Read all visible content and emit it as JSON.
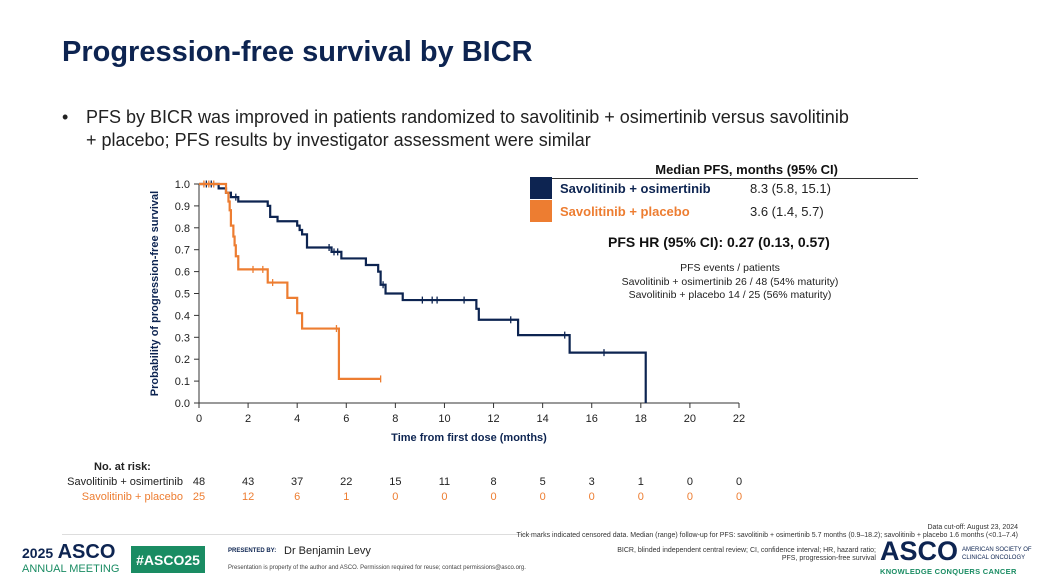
{
  "title": "Progression-free survival by BICR",
  "bullet": "PFS by BICR was improved in patients randomized to savolitinib + osimertinib versus savolitinib + placebo; PFS results by investigator assessment were similar",
  "bullet_marker": "•",
  "median": {
    "title": "Median PFS, months (95% CI)",
    "rows": [
      {
        "label": "Savolitinib + osimertinib",
        "value": "8.3 (5.8, 15.1)",
        "color": "#0d2451"
      },
      {
        "label": "Savolitinib + placebo",
        "value": "3.6 (1.4, 5.7)",
        "color": "#ed7d31"
      }
    ]
  },
  "hr": "PFS HR (95% CI): 0.27 (0.13, 0.57)",
  "events": {
    "title": "PFS events / patients",
    "lines": [
      "Savolitinib + osimertinib 26 / 48 (54% maturity)",
      "Savolitinib + placebo 14 / 25 (56% maturity)"
    ]
  },
  "chart_data": {
    "type": "line",
    "subtype": "kaplan-meier",
    "xlabel": "Time from first dose (months)",
    "ylabel": "Probability of progression-free survival",
    "xlim": [
      0,
      22
    ],
    "ylim": [
      0,
      1
    ],
    "xticks": [
      "0",
      "2",
      "4",
      "6",
      "8",
      "10",
      "12",
      "14",
      "16",
      "18",
      "20",
      "22"
    ],
    "yticks": [
      "0.0",
      "0.1",
      "0.2",
      "0.3",
      "0.4",
      "0.5",
      "0.6",
      "0.7",
      "0.8",
      "0.9",
      "1.0"
    ],
    "series": [
      {
        "name": "Savolitinib + osimertinib",
        "color": "#0d2451",
        "steps": [
          [
            0,
            1
          ],
          [
            0.8,
            0.98
          ],
          [
            1.1,
            0.96
          ],
          [
            1.3,
            0.94
          ],
          [
            1.6,
            0.92
          ],
          [
            2.8,
            0.9
          ],
          [
            2.9,
            0.85
          ],
          [
            3.2,
            0.83
          ],
          [
            4.0,
            0.81
          ],
          [
            4.1,
            0.79
          ],
          [
            4.2,
            0.77
          ],
          [
            4.4,
            0.71
          ],
          [
            5.4,
            0.69
          ],
          [
            5.8,
            0.66
          ],
          [
            6.8,
            0.63
          ],
          [
            7.3,
            0.6
          ],
          [
            7.4,
            0.54
          ],
          [
            7.6,
            0.5
          ],
          [
            8.3,
            0.47
          ],
          [
            11.3,
            0.43
          ],
          [
            11.4,
            0.38
          ],
          [
            13.0,
            0.31
          ],
          [
            15.1,
            0.23
          ],
          [
            18.2,
            0
          ]
        ],
        "censored": [
          [
            0.3,
            1
          ],
          [
            0.5,
            1
          ],
          [
            1.5,
            0.94
          ],
          [
            5.3,
            0.71
          ],
          [
            5.5,
            0.69
          ],
          [
            5.65,
            0.69
          ],
          [
            7.5,
            0.54
          ],
          [
            9.1,
            0.47
          ],
          [
            9.5,
            0.47
          ],
          [
            9.7,
            0.47
          ],
          [
            10.8,
            0.47
          ],
          [
            12.7,
            0.38
          ],
          [
            14.9,
            0.31
          ],
          [
            16.5,
            0.23
          ]
        ]
      },
      {
        "name": "Savolitinib + placebo",
        "color": "#ed7d31",
        "steps": [
          [
            0,
            1
          ],
          [
            1.1,
            0.96
          ],
          [
            1.2,
            0.92
          ],
          [
            1.25,
            0.88
          ],
          [
            1.3,
            0.81
          ],
          [
            1.4,
            0.76
          ],
          [
            1.45,
            0.72
          ],
          [
            1.5,
            0.67
          ],
          [
            1.6,
            0.61
          ],
          [
            2.8,
            0.55
          ],
          [
            3.6,
            0.48
          ],
          [
            4.0,
            0.41
          ],
          [
            4.2,
            0.34
          ],
          [
            5.7,
            0.11
          ]
        ],
        "end": 7.4,
        "censored": [
          [
            0.2,
            1
          ],
          [
            0.4,
            1
          ],
          [
            0.6,
            1
          ],
          [
            2.2,
            0.61
          ],
          [
            2.6,
            0.61
          ],
          [
            3.0,
            0.55
          ],
          [
            5.6,
            0.34
          ],
          [
            7.4,
            0.11
          ]
        ]
      }
    ]
  },
  "risk": {
    "title": "No. at risk:",
    "rows": [
      {
        "label": "Savolitinib + osimertinib",
        "color": "#222222",
        "values": [
          "48",
          "43",
          "37",
          "22",
          "15",
          "11",
          "8",
          "5",
          "3",
          "1",
          "0",
          "0"
        ]
      },
      {
        "label": "Savolitinib + placebo",
        "color": "#ed7d31",
        "values": [
          "25",
          "12",
          "6",
          "1",
          "0",
          "0",
          "0",
          "0",
          "0",
          "0",
          "0",
          "0"
        ]
      }
    ]
  },
  "footer": {
    "cutoff": "Data cut-off: August 23, 2024",
    "note": "Tick marks indicated censored data. Median (range) follow-up for PFS: savolitinib + osimertinib 5.7 months (0.9–18.2); savolitinib + placebo 1.6 months (<0.1–7.4)",
    "abbr1": "BICR, blinded independent central review; CI, confidence interval; HR, hazard ratio;",
    "abbr2": "PFS, progression-free survival",
    "meeting_year": "2025",
    "meeting_asco": "ASCO",
    "meeting_sub": "ANNUAL MEETING",
    "hashtag": "#ASCO25",
    "presented_by": "PRESENTED BY:",
    "presenter": "Dr Benjamin Levy",
    "property": "Presentation is property of the author and ASCO. Permission required for reuse; contact permissions@asco.org.",
    "asco_logo": "ASCO",
    "asco_name1": "AMERICAN SOCIETY OF",
    "asco_name2": "CLINICAL ONCOLOGY",
    "tagline": "KNOWLEDGE CONQUERS CANCER"
  }
}
